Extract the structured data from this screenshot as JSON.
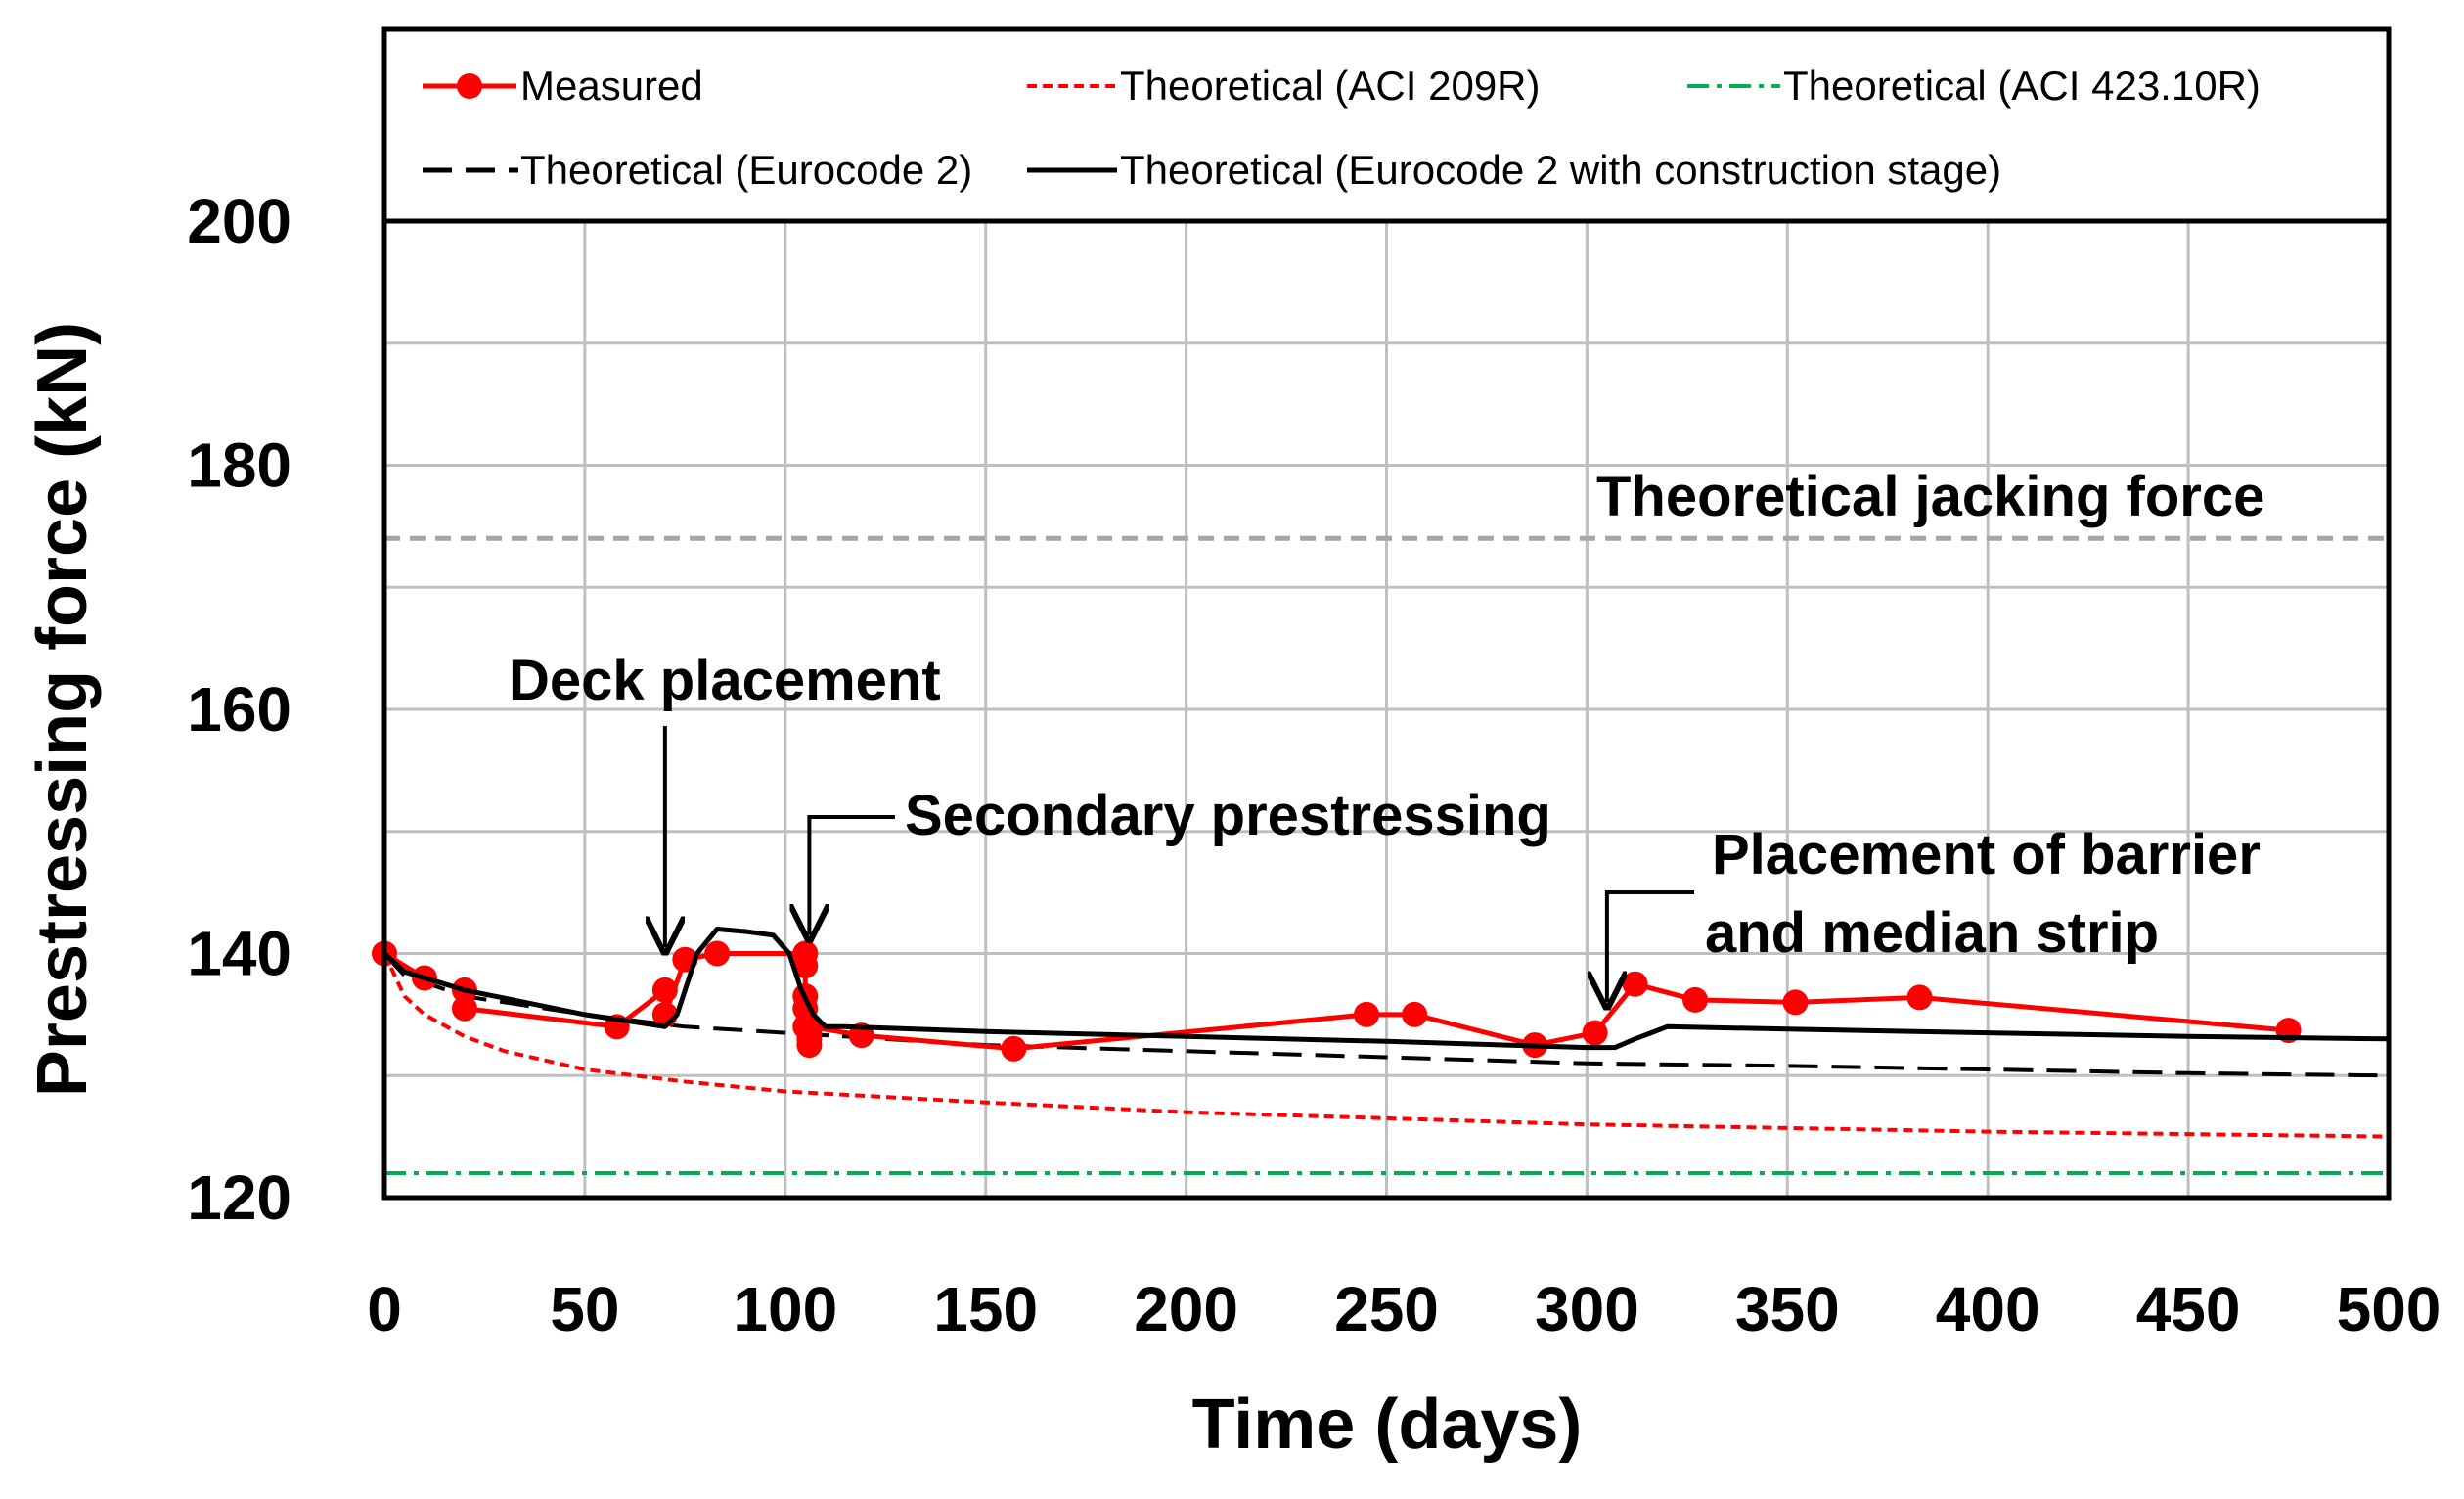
{
  "chart_data": {
    "type": "line",
    "xlabel": "Time (days)",
    "ylabel": "Prestressing force (kN)",
    "xlim": [
      0,
      500
    ],
    "ylim": [
      120,
      200
    ],
    "xticks": [
      0,
      50,
      100,
      150,
      200,
      250,
      300,
      350,
      400,
      450,
      500
    ],
    "yticks": [
      120,
      140,
      160,
      180,
      200
    ],
    "grid": true,
    "legend_position": "top",
    "colors": {
      "measured": "#ff0000",
      "aci209": "#ff0000",
      "aci423": "#00b050",
      "jacking": "#a6a6a6",
      "eurocode": "#000000"
    },
    "series": [
      {
        "id": "measured",
        "name": "Measured",
        "style": "solid-marker",
        "x": [
          0,
          10,
          20,
          20,
          58,
          70,
          70,
          75,
          83,
          105,
          105,
          105,
          105,
          105,
          106,
          106,
          106,
          106,
          119,
          157,
          245,
          257,
          287,
          302,
          312,
          327,
          352,
          383,
          475
        ],
        "y": [
          140,
          138,
          137,
          135.5,
          134,
          137,
          135,
          139.5,
          140,
          140,
          139,
          136.5,
          135.5,
          134,
          133.5,
          133,
          132.5,
          134,
          133.3,
          132.2,
          135,
          135,
          132.5,
          133.5,
          137.5,
          136.2,
          136,
          136.4,
          133.7
        ]
      },
      {
        "id": "aci209",
        "name": "Theoretical (ACI 209R)",
        "style": "short-dash",
        "x": [
          0,
          5,
          10,
          20,
          30,
          50,
          75,
          100,
          150,
          200,
          250,
          300,
          350,
          400,
          450,
          500
        ],
        "y": [
          140,
          136.5,
          135,
          133.2,
          132,
          130.5,
          129.5,
          128.7,
          127.8,
          127,
          126.5,
          126,
          125.7,
          125.4,
          125.2,
          125
        ]
      },
      {
        "id": "aci423",
        "name": "Theoretical (ACI 423.10R)",
        "style": "dash-dot",
        "x": [
          0,
          500
        ],
        "y": [
          122,
          122
        ]
      },
      {
        "id": "eurocode2",
        "name": "Theoretical (Eurocode 2)",
        "style": "long-dash",
        "x": [
          0,
          5,
          20,
          50,
          75,
          100,
          150,
          200,
          250,
          300,
          350,
          400,
          450,
          500
        ],
        "y": [
          140,
          138.2,
          136.5,
          135,
          134,
          133.5,
          132.5,
          132,
          131.5,
          131,
          130.8,
          130.5,
          130.2,
          130
        ]
      },
      {
        "id": "eurocode2_cs",
        "name": "Theoretical (Eurocode 2 with construction stage)",
        "style": "solid",
        "x": [
          0,
          5,
          20,
          50,
          70,
          73,
          78,
          83,
          90,
          97,
          101,
          104,
          107,
          110,
          115,
          150,
          200,
          250,
          300,
          307,
          312,
          316,
          320,
          350,
          400,
          450,
          500
        ],
        "y": [
          140,
          138.5,
          137,
          135,
          134,
          135,
          140,
          142,
          141.8,
          141.5,
          140,
          137,
          135,
          134,
          134,
          133.6,
          133.2,
          132.8,
          132.3,
          132.3,
          133,
          133.5,
          134,
          133.8,
          133.5,
          133.2,
          133
        ]
      },
      {
        "id": "jacking",
        "name": "Theoretical jacking force",
        "style": "gray-dash",
        "x": [
          0,
          500
        ],
        "y": [
          174,
          174
        ]
      }
    ],
    "annotations": [
      {
        "id": "deck",
        "text": "Deck placement",
        "arrow_x": 70,
        "arrow_y": 140.5
      },
      {
        "id": "secondary",
        "text": "Secondary prestressing",
        "arrow_x": 106,
        "arrow_y": 141.5
      },
      {
        "id": "barrier1",
        "text": "Placement of barrier",
        "arrow_x": 305,
        "arrow_y": 136
      },
      {
        "id": "barrier2",
        "text": "and median strip"
      },
      {
        "id": "jacking",
        "text": "Theoretical jacking force"
      }
    ]
  }
}
